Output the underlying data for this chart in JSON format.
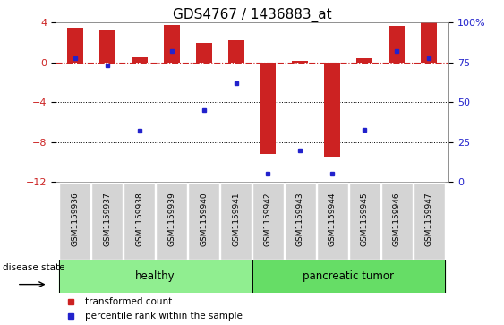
{
  "title": "GDS4767 / 1436883_at",
  "samples": [
    "GSM1159936",
    "GSM1159937",
    "GSM1159938",
    "GSM1159939",
    "GSM1159940",
    "GSM1159941",
    "GSM1159942",
    "GSM1159943",
    "GSM1159944",
    "GSM1159945",
    "GSM1159946",
    "GSM1159947"
  ],
  "bar_values": [
    3.5,
    3.3,
    0.5,
    3.8,
    2.0,
    2.2,
    -9.2,
    0.2,
    -9.5,
    0.4,
    3.7,
    4.0
  ],
  "dot_values": [
    78,
    73,
    32,
    82,
    45,
    62,
    5,
    20,
    5,
    33,
    82,
    78
  ],
  "bar_color": "#cc2222",
  "dot_color": "#2222cc",
  "ylim_left": [
    -12,
    4
  ],
  "ylim_right": [
    0,
    100
  ],
  "yticks_left": [
    -12,
    -8,
    -4,
    0,
    4
  ],
  "yticks_right": [
    0,
    25,
    50,
    75,
    100
  ],
  "hline_color": "#cc2222",
  "dotted_lines": [
    -4,
    -8
  ],
  "groups": [
    {
      "label": "healthy",
      "start": 0,
      "end": 5,
      "color": "#90ee90"
    },
    {
      "label": "pancreatic tumor",
      "start": 6,
      "end": 11,
      "color": "#66dd66"
    }
  ],
  "group_row_label": "disease state",
  "legend_bar_label": "transformed count",
  "legend_dot_label": "percentile rank within the sample",
  "bar_width": 0.5,
  "background_color": "#ffffff",
  "tick_label_fontsize": 6.5,
  "title_fontsize": 11
}
